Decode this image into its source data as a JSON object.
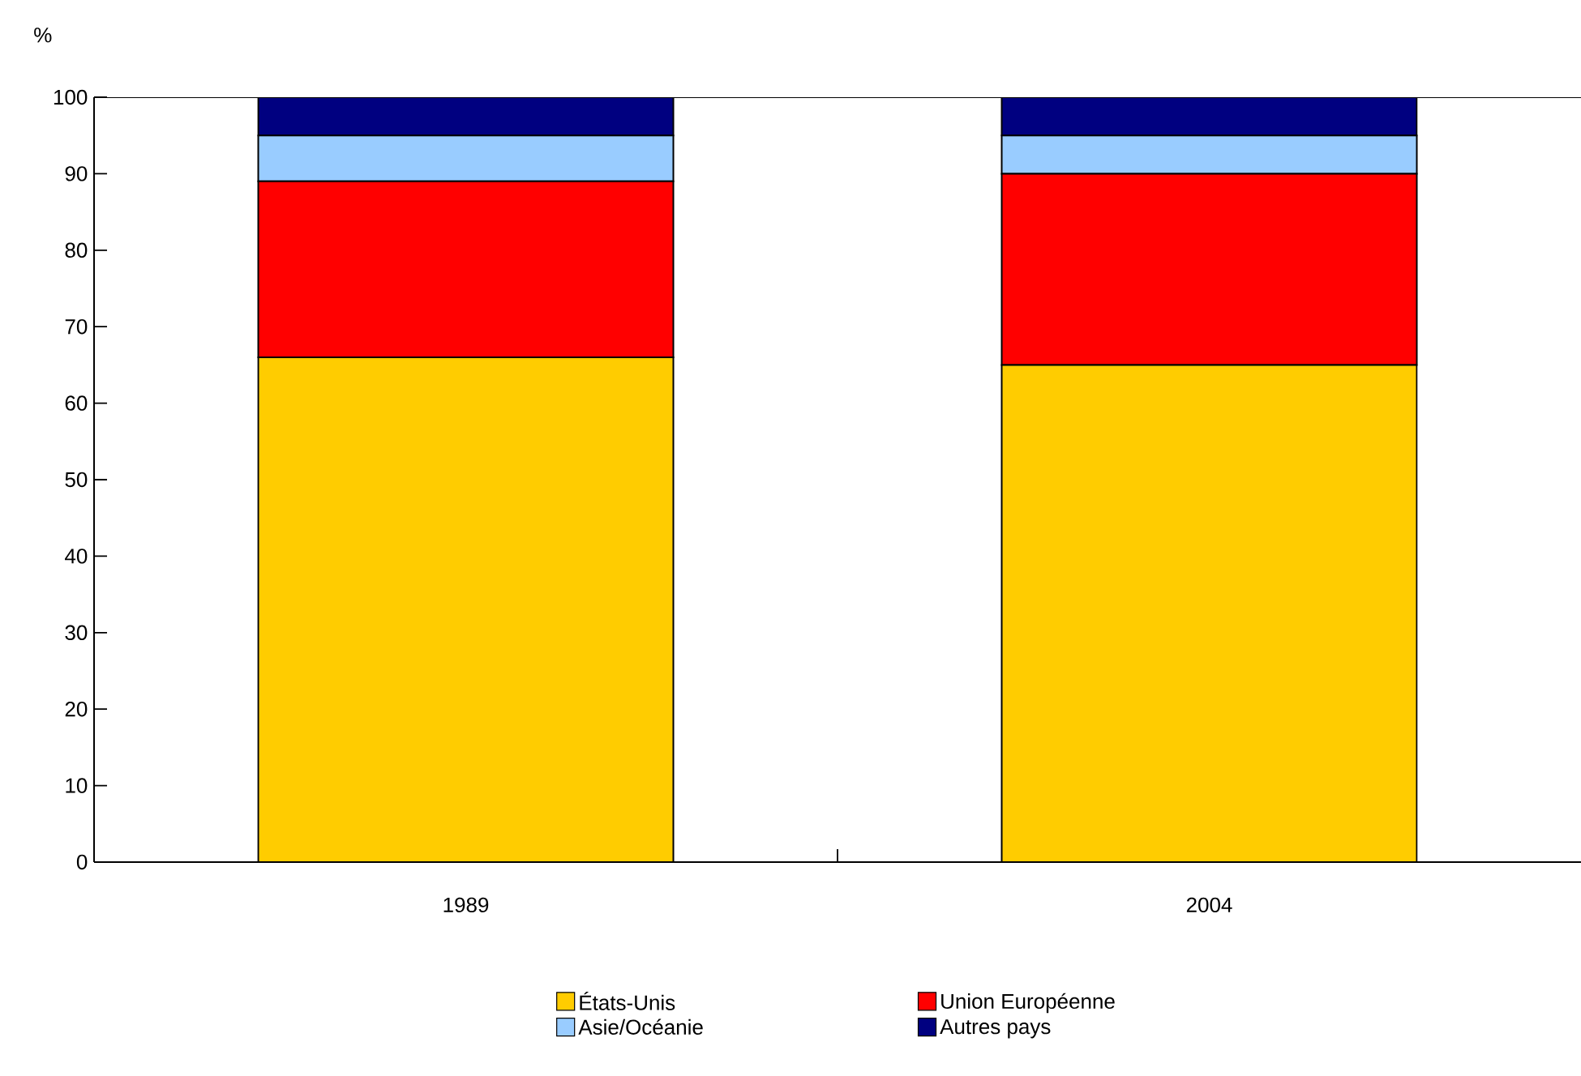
{
  "chart_data": {
    "type": "bar",
    "stacked": true,
    "ylabel": "%",
    "categories": [
      "1989",
      "2004"
    ],
    "series": [
      {
        "name": "États-Unis",
        "color": "#ffcc00",
        "values": [
          66,
          65
        ]
      },
      {
        "name": "Union Européenne",
        "color": "#ff0000",
        "values": [
          23,
          25
        ]
      },
      {
        "name": "Asie/Océanie",
        "color": "#99ccff",
        "values": [
          6,
          5
        ]
      },
      {
        "name": "Autres pays",
        "color": "#000080",
        "values": [
          5,
          5
        ]
      }
    ],
    "ylim": [
      0,
      100
    ],
    "yticks": [
      0,
      10,
      20,
      30,
      40,
      50,
      60,
      70,
      80,
      90,
      100
    ],
    "grid": false,
    "legend": "bottom"
  }
}
